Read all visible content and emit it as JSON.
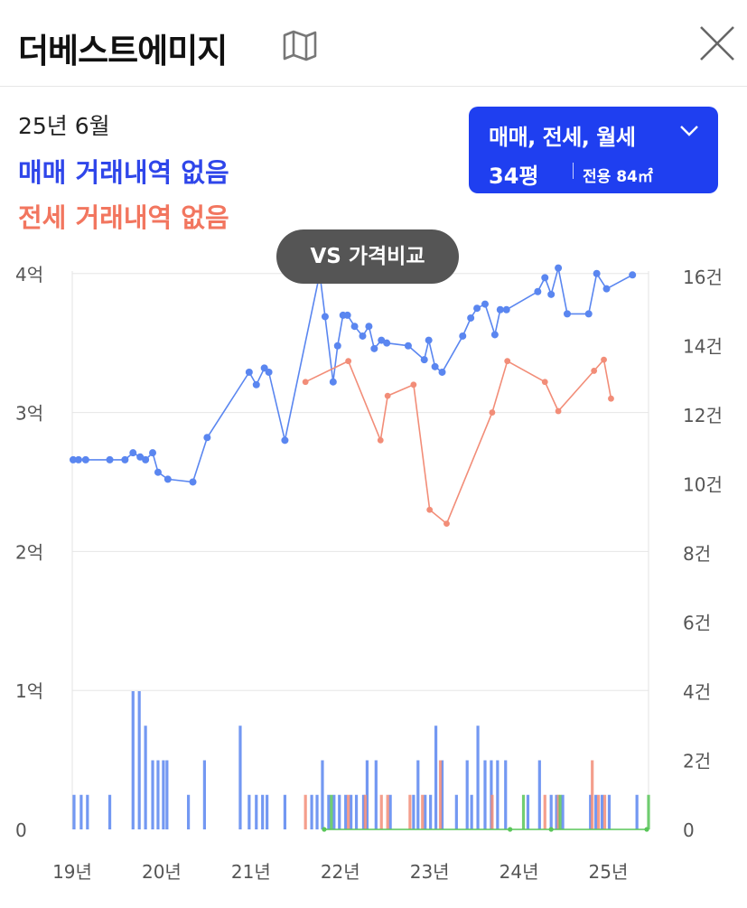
{
  "header": {
    "title": "더베스트에미지"
  },
  "info": {
    "date": "25년 6월",
    "sale_status": "매매 거래내역 없음",
    "jeonse_status": "전세 거래내역 없음"
  },
  "filter": {
    "types": "매매, 전세, 월세",
    "size": "34평",
    "area": "전용 84㎡"
  },
  "vs_button": "VS 가격비교",
  "colors": {
    "sale": "#5a86f0",
    "jeonse": "#f28d78",
    "rent": "#59c659",
    "filter_bg": "#1f3ff0",
    "sale_text": "#2f46ea",
    "jeonse_text": "#f2765f"
  },
  "chart_data": {
    "type": "line",
    "grid": true,
    "x_range": [
      19.0,
      25.45
    ],
    "x_ticks": [
      {
        "x": 19,
        "label": "19년"
      },
      {
        "x": 20,
        "label": "20년"
      },
      {
        "x": 21,
        "label": "21년"
      },
      {
        "x": 22,
        "label": "22년"
      },
      {
        "x": 23,
        "label": "23년"
      },
      {
        "x": 24,
        "label": "24년"
      },
      {
        "x": 25,
        "label": "25년"
      }
    ],
    "y_left": {
      "range": [
        0,
        4.2
      ],
      "ticks": [
        {
          "v": 0,
          "label": "0"
        },
        {
          "v": 1,
          "label": "1억"
        },
        {
          "v": 2,
          "label": "2억"
        },
        {
          "v": 3,
          "label": "3억"
        },
        {
          "v": 4,
          "label": "4억"
        }
      ]
    },
    "y_right": {
      "range": [
        0,
        16
      ],
      "ticks": [
        {
          "v": 0,
          "label": "0"
        },
        {
          "v": 2,
          "label": "2건"
        },
        {
          "v": 4,
          "label": "4건"
        },
        {
          "v": 6,
          "label": "6건"
        },
        {
          "v": 8,
          "label": "8건"
        },
        {
          "v": 10,
          "label": "10건"
        },
        {
          "v": 12,
          "label": "12건"
        },
        {
          "v": 14,
          "label": "14건"
        },
        {
          "v": 16,
          "label": "16건"
        }
      ]
    },
    "series": [
      {
        "name": "매매",
        "axis": "left",
        "color": "#5a86f0",
        "x": [
          19.01,
          19.07,
          19.15,
          19.42,
          19.59,
          19.68,
          19.76,
          19.82,
          19.9,
          19.96,
          20.07,
          20.35,
          20.51,
          20.98,
          21.06,
          21.15,
          21.2,
          21.38,
          21.77,
          21.83,
          21.92,
          21.97,
          22.03,
          22.08,
          22.16,
          22.25,
          22.32,
          22.38,
          22.46,
          22.52,
          22.76,
          22.94,
          22.99,
          23.06,
          23.14,
          23.37,
          23.46,
          23.53,
          23.62,
          23.73,
          23.79,
          23.86,
          24.21,
          24.29,
          24.36,
          24.44,
          24.54,
          24.78,
          24.87,
          24.98,
          25.27
        ],
        "y": [
          2.66,
          2.66,
          2.66,
          2.66,
          2.66,
          2.71,
          2.68,
          2.66,
          2.71,
          2.57,
          2.52,
          2.5,
          2.82,
          3.29,
          3.2,
          3.32,
          3.29,
          2.8,
          4.0,
          3.69,
          3.22,
          3.48,
          3.7,
          3.7,
          3.62,
          3.55,
          3.62,
          3.46,
          3.52,
          3.5,
          3.48,
          3.38,
          3.52,
          3.33,
          3.29,
          3.55,
          3.68,
          3.75,
          3.78,
          3.56,
          3.74,
          3.74,
          3.87,
          3.97,
          3.85,
          4.04,
          3.71,
          3.71,
          4.0,
          3.89,
          3.99
        ]
      },
      {
        "name": "전세",
        "axis": "left",
        "color": "#f28d78",
        "x": [
          21.61,
          22.09,
          22.45,
          22.53,
          22.82,
          23.0,
          23.19,
          23.7,
          23.87,
          24.29,
          24.44,
          24.84,
          24.95,
          25.03
        ],
        "y": [
          3.22,
          3.37,
          2.8,
          3.12,
          3.2,
          2.3,
          2.2,
          3.0,
          3.37,
          3.22,
          3.01,
          3.3,
          3.38,
          3.1
        ]
      },
      {
        "name": "월세",
        "axis": "right",
        "color": "#59c659",
        "x": [
          21.82,
          23.9,
          24.36,
          25.43
        ],
        "y": [
          0,
          0,
          0,
          0
        ]
      }
    ],
    "bars": {
      "sale": {
        "color": "#5a86f0",
        "x": [
          19.02,
          19.1,
          19.17,
          19.42,
          19.68,
          19.75,
          19.82,
          19.9,
          19.96,
          20.02,
          20.06,
          20.3,
          20.48,
          20.88,
          20.98,
          21.06,
          21.13,
          21.18,
          21.38,
          21.68,
          21.74,
          21.8,
          21.87,
          21.93,
          21.99,
          22.06,
          22.12,
          22.18,
          22.26,
          22.3,
          22.4,
          22.56,
          22.82,
          22.87,
          22.95,
          23.01,
          23.07,
          23.14,
          23.3,
          23.42,
          23.47,
          23.54,
          23.62,
          23.69,
          23.76,
          23.85,
          24.1,
          24.23,
          24.36,
          24.42,
          24.49,
          24.8,
          24.86,
          24.93,
          25.01,
          25.32
        ],
        "counts": [
          1,
          1,
          1,
          1,
          4,
          4,
          3,
          2,
          2,
          2,
          2,
          1,
          2,
          3,
          1,
          1,
          1,
          1,
          1,
          1,
          1,
          2,
          1,
          1,
          1,
          1,
          1,
          1,
          1,
          2,
          2,
          1,
          1,
          2,
          1,
          1,
          3,
          2,
          1,
          2,
          1,
          3,
          2,
          2,
          2,
          2,
          1,
          2,
          1,
          1,
          1,
          1,
          1,
          1,
          1,
          1
        ]
      },
      "jeonse": {
        "color": "#f28d78",
        "x": [
          21.61,
          22.09,
          22.28,
          22.46,
          22.53,
          22.78,
          22.92,
          23.12,
          23.7,
          24.29,
          24.44,
          24.82,
          24.89,
          24.96
        ],
        "counts": [
          1,
          1,
          1,
          1,
          1,
          1,
          1,
          2,
          1,
          1,
          1,
          2,
          1,
          1
        ]
      },
      "rent": {
        "color": "#59c659",
        "x": [
          21.9,
          24.05,
          24.46,
          25.45
        ],
        "counts": [
          1,
          1,
          1,
          1
        ]
      }
    }
  }
}
